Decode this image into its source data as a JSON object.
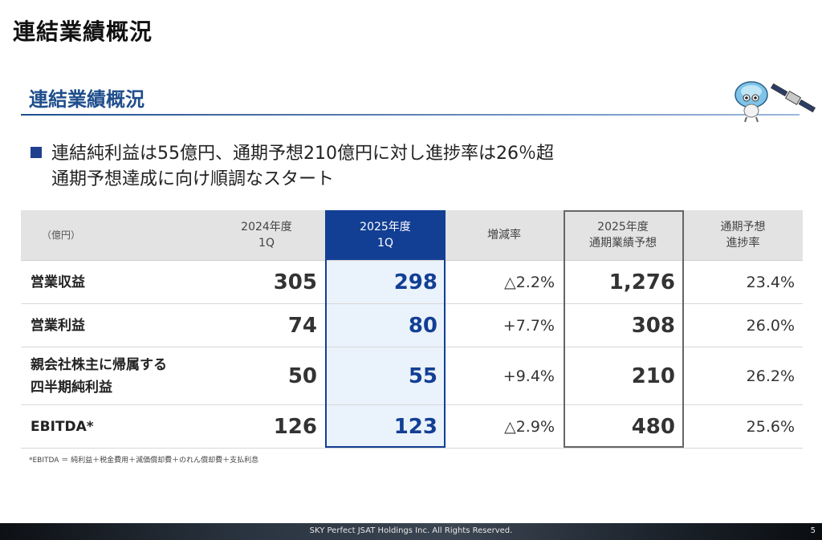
{
  "page_title": "連結業績概況",
  "section_title": "連結業績概況",
  "headline": {
    "line1": "連結純利益は55億円、通期予想210億円に対し進捗率は26％超",
    "line2": "通期予想達成に向け順調なスタート"
  },
  "table": {
    "unit": "（億円）",
    "headers": {
      "prev_l1": "2024年度",
      "prev_l2": "1Q",
      "cur_l1": "2025年度",
      "cur_l2": "1Q",
      "change": "増減率",
      "forecast_l1": "2025年度",
      "forecast_l2": "通期業績予想",
      "progress_l1": "通期予想",
      "progress_l2": "進捗率"
    },
    "rows": [
      {
        "label_l1": "営業収益",
        "label_l2": "",
        "prev": "305",
        "cur": "298",
        "change": "△2.2%",
        "forecast": "1,276",
        "progress": "23.4%"
      },
      {
        "label_l1": "営業利益",
        "label_l2": "",
        "prev": "74",
        "cur": "80",
        "change": "+7.7%",
        "forecast": "308",
        "progress": "26.0%"
      },
      {
        "label_l1": "親会社株主に帰属する",
        "label_l2": "四半期純利益",
        "prev": "50",
        "cur": "55",
        "change": "+9.4%",
        "forecast": "210",
        "progress": "26.2%"
      },
      {
        "label_l1": "EBITDA*",
        "label_l2": "",
        "prev": "126",
        "cur": "123",
        "change": "△2.9%",
        "forecast": "480",
        "progress": "25.6%"
      }
    ]
  },
  "footnote": "*EBITDA ＝ 純利益＋税金費用＋減価償却費＋のれん償却費＋支払利息",
  "footer": {
    "copyright": "SKY Perfect JSAT Holdings Inc. All Rights Reserved.",
    "page_number": "5"
  },
  "colors": {
    "accent": "#123f94",
    "highlight_bg": "#eaf2fb",
    "header_bg": "#e3e3e3"
  },
  "icons": {
    "mascot": "satellite-mascot-icon"
  }
}
